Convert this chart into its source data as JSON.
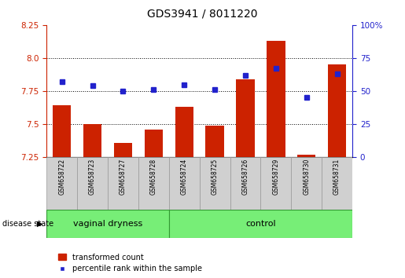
{
  "title": "GDS3941 / 8011220",
  "samples": [
    "GSM658722",
    "GSM658723",
    "GSM658727",
    "GSM658728",
    "GSM658724",
    "GSM658725",
    "GSM658726",
    "GSM658729",
    "GSM658730",
    "GSM658731"
  ],
  "transformed_count": [
    7.64,
    7.5,
    7.36,
    7.46,
    7.63,
    7.49,
    7.84,
    8.13,
    7.265,
    7.95
  ],
  "percentile_rank": [
    57,
    54,
    50,
    51,
    55,
    51,
    62,
    67,
    45,
    63
  ],
  "bar_color": "#cc2200",
  "dot_color": "#2222cc",
  "ylim_left": [
    7.25,
    8.25
  ],
  "ylim_right": [
    0,
    100
  ],
  "yticks_left": [
    7.25,
    7.5,
    7.75,
    8.0,
    8.25
  ],
  "yticks_right": [
    0,
    25,
    50,
    75,
    100
  ],
  "ytick_labels_right": [
    "0",
    "25",
    "50",
    "75",
    "100%"
  ],
  "hlines": [
    7.5,
    7.75,
    8.0
  ],
  "group1_label": "vaginal dryness",
  "group2_label": "control",
  "group1_count": 4,
  "group2_count": 6,
  "disease_label": "disease state",
  "legend_bar_label": "transformed count",
  "legend_dot_label": "percentile rank within the sample",
  "bar_width": 0.6,
  "group_bar_color": "#77ee77",
  "group_bar_border": "#339933",
  "sample_area_color": "#d0d0d0",
  "sample_area_border": "#999999",
  "title_fontsize": 10,
  "tick_fontsize": 7.5
}
